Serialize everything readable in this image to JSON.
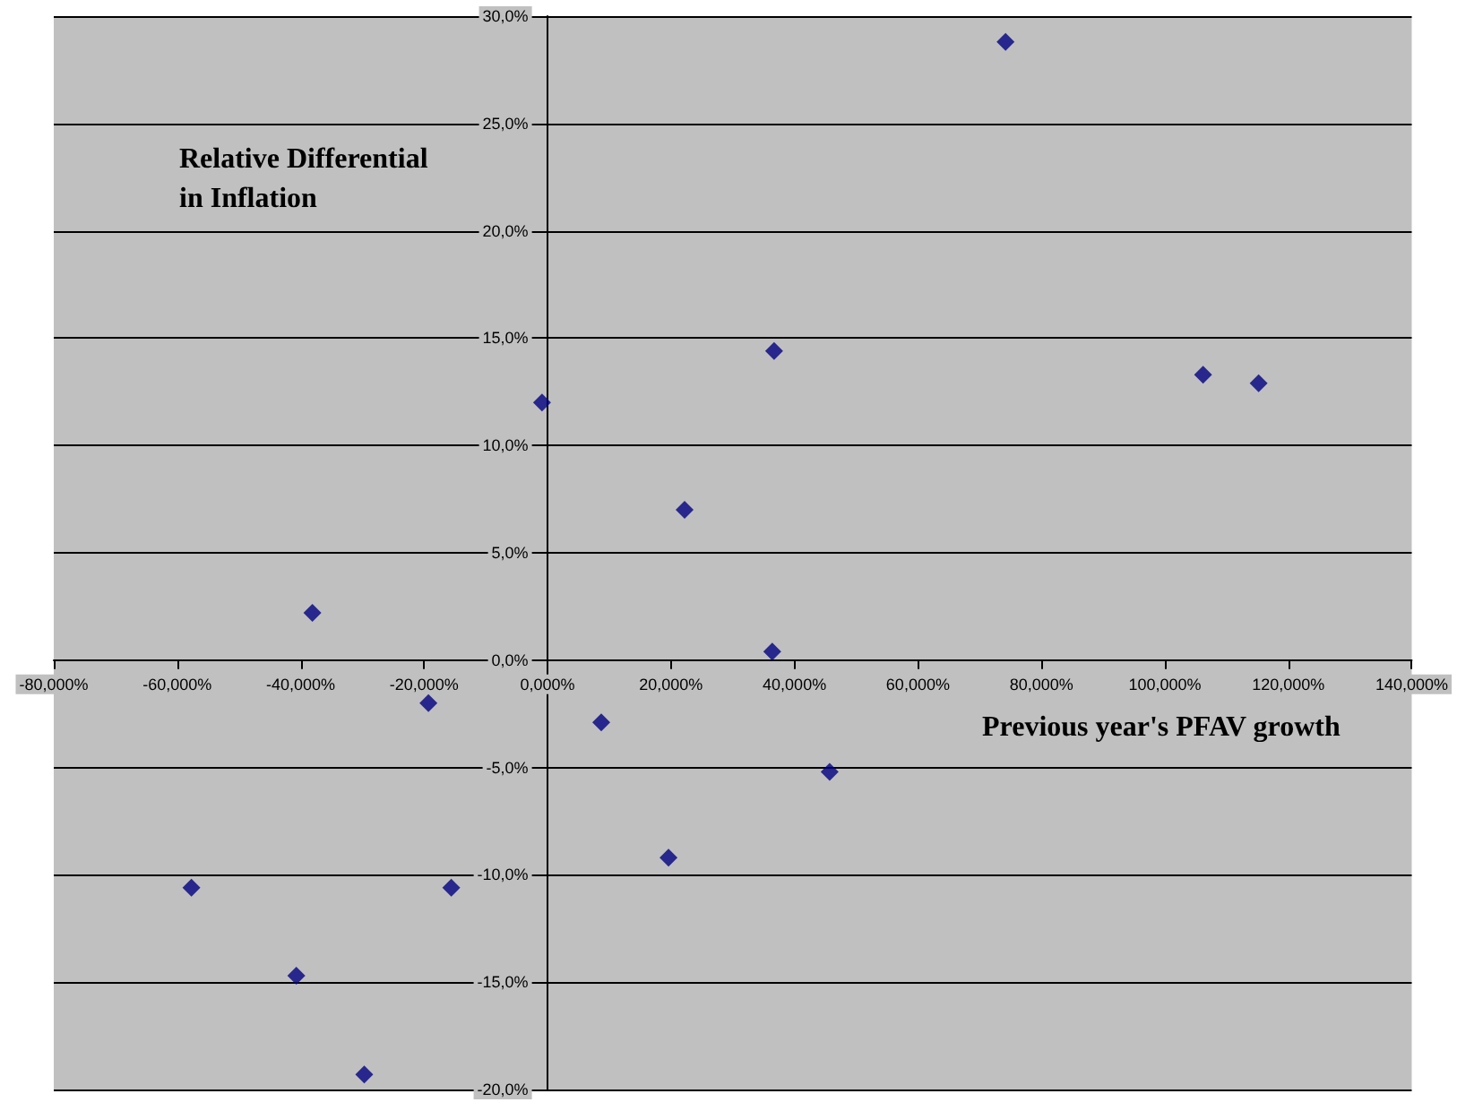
{
  "chart_data": {
    "type": "scatter",
    "xlabel": "Previous year's PFAV growth",
    "ylabel": "Relative Differential\nin Inflation",
    "x": [
      74.2,
      106.2,
      115.2,
      36.7,
      -0.9,
      22.2,
      36.4,
      -38.1,
      -19.3,
      8.7,
      45.7,
      19.6,
      -57.7,
      -15.6,
      -40.7,
      -29.7
    ],
    "series": [
      {
        "color": "#000080",
        "values": [
          28.8,
          13.3,
          12.9,
          14.4,
          12.0,
          7.0,
          0.4,
          2.2,
          -2.0,
          -2.9,
          -5.2,
          -9.2,
          -10.6,
          -10.6,
          -14.7,
          -19.3
        ]
      }
    ],
    "xlim": [
      -80,
      140
    ],
    "xticks": [
      {
        "value": -80,
        "label": "-80,000%"
      },
      {
        "value": -60,
        "label": "-60,000%"
      },
      {
        "value": -40,
        "label": "-40,000%"
      },
      {
        "value": -20,
        "label": "-20,000%"
      },
      {
        "value": 0,
        "label": "0,000%"
      },
      {
        "value": 20,
        "label": "20,000%"
      },
      {
        "value": 40,
        "label": "40,000%"
      },
      {
        "value": 60,
        "label": "60,000%"
      },
      {
        "value": 80,
        "label": "80,000%"
      },
      {
        "value": 100,
        "label": "100,000%"
      },
      {
        "value": 120,
        "label": "120,000%"
      },
      {
        "value": 140,
        "label": "140,000%"
      }
    ],
    "ylim": [
      -20,
      30
    ],
    "yticks": [
      {
        "value": -20,
        "label": "-20,0%"
      },
      {
        "value": -15,
        "label": "-15,0%"
      },
      {
        "value": -10,
        "label": "-10,0%"
      },
      {
        "value": -5,
        "label": "-5,0%"
      },
      {
        "value": 0,
        "label": "0,0%"
      },
      {
        "value": 5,
        "label": "5,0%"
      },
      {
        "value": 10,
        "label": "10,0%"
      },
      {
        "value": 15,
        "label": "15,0%"
      },
      {
        "value": 20,
        "label": "20,0%"
      },
      {
        "value": 25,
        "label": "25,0%"
      },
      {
        "value": 30,
        "label": "30,0%"
      }
    ],
    "grid": "y",
    "marker": "diamond"
  }
}
